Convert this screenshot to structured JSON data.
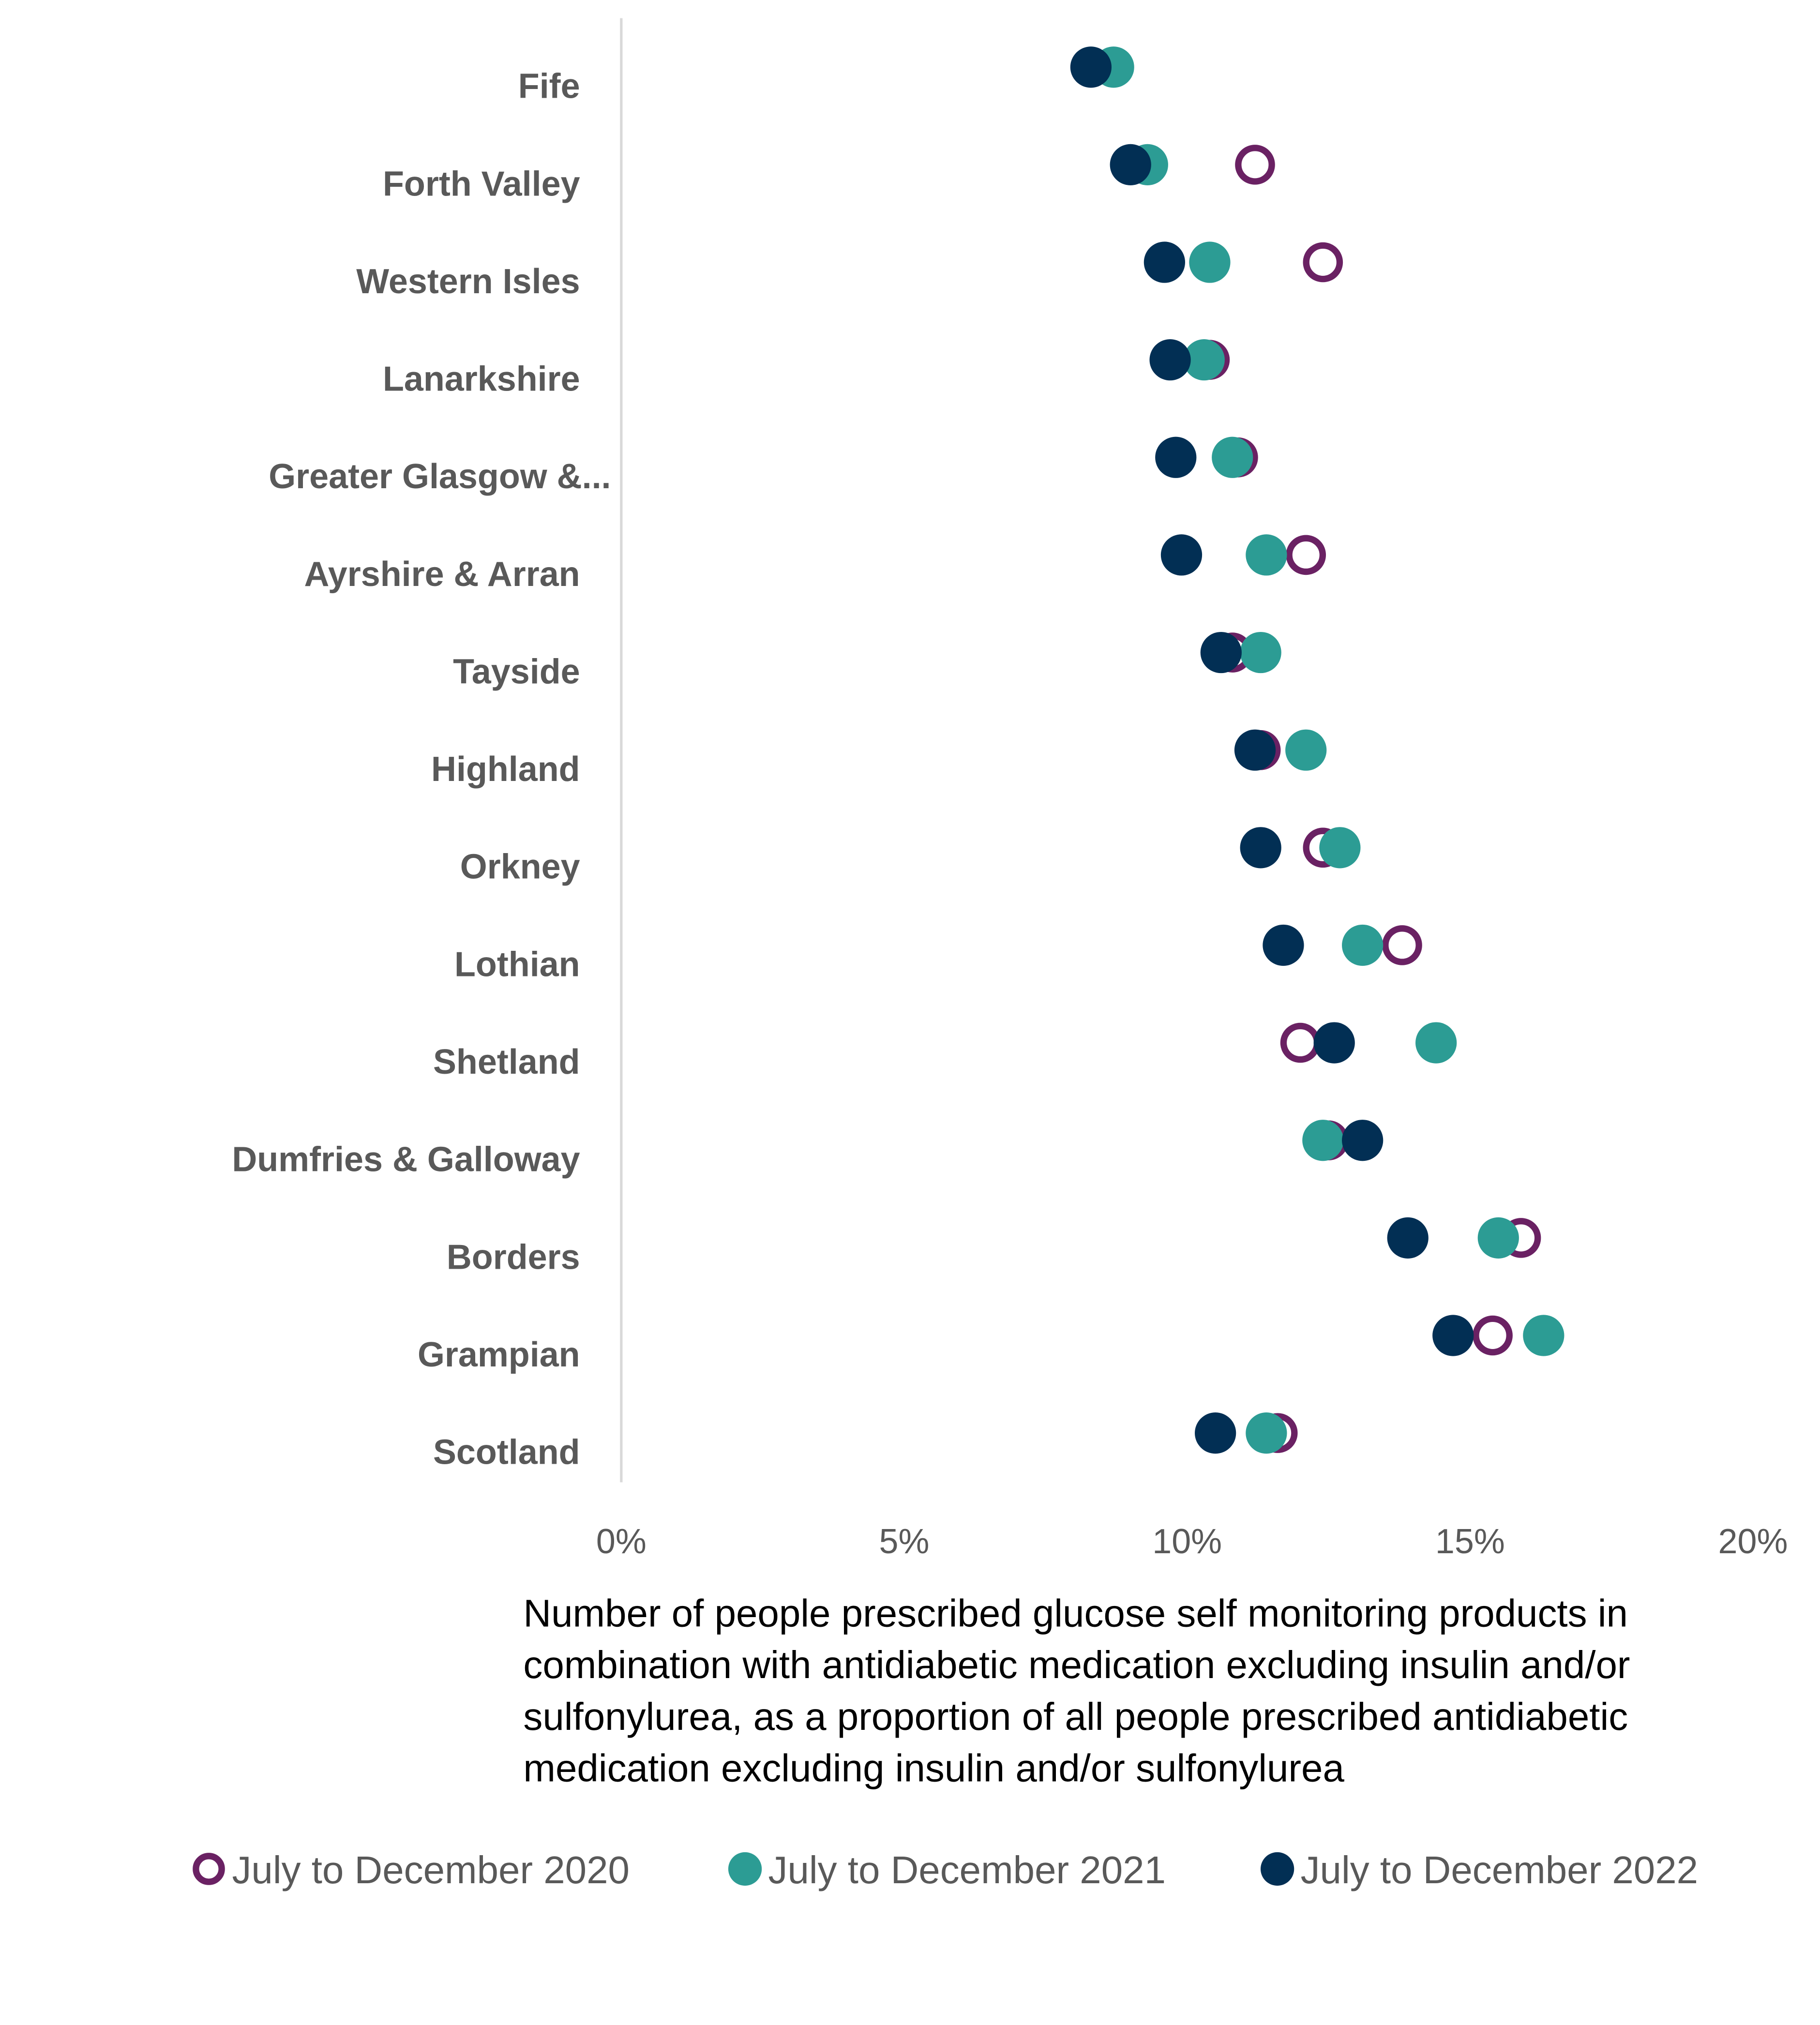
{
  "chart_data": {
    "type": "scatter",
    "orientation": "horizontal-dot-plot",
    "categories": [
      "Fife",
      "Forth Valley",
      "Western Isles",
      "Lanarkshire",
      "Greater Glasgow &...",
      "Ayrshire & Arran",
      "Tayside",
      "Highland",
      "Orkney",
      "Lothian",
      "Shetland",
      "Dumfries & Galloway",
      "Borders",
      "Grampian",
      "Scotland"
    ],
    "series": [
      {
        "name": "July to December 2020",
        "color": "#6a2163",
        "marker": "open-circle",
        "values": [
          null,
          11.2,
          12.4,
          10.4,
          10.9,
          12.1,
          10.8,
          11.3,
          12.4,
          13.8,
          12.0,
          12.5,
          15.9,
          15.4,
          11.6
        ]
      },
      {
        "name": "July to December 2021",
        "color": "#2c9c94",
        "marker": "filled-circle",
        "values": [
          8.7,
          9.3,
          10.4,
          10.3,
          10.8,
          11.4,
          11.3,
          12.1,
          12.7,
          13.1,
          14.4,
          12.4,
          15.5,
          16.3,
          11.4
        ]
      },
      {
        "name": "July to December 2022",
        "color": "#022f54",
        "marker": "filled-circle",
        "values": [
          8.3,
          9.0,
          9.6,
          9.7,
          9.8,
          9.9,
          10.6,
          11.2,
          11.3,
          11.7,
          12.6,
          13.1,
          13.9,
          14.7,
          10.5
        ]
      }
    ],
    "xticks": [
      "0%",
      "5%",
      "10%",
      "15%",
      "20%"
    ],
    "xlim": [
      0,
      20
    ],
    "xlabel_lines": [
      "Number of people prescribed glucose self monitoring products in",
      "combination with antidiabetic medication excluding insulin and/or",
      "sulfonylurea, as a proportion of all people prescribed antidiabetic",
      "medication excluding insulin and/or sulfonylurea"
    ],
    "legend_position": "bottom",
    "grid": false
  }
}
